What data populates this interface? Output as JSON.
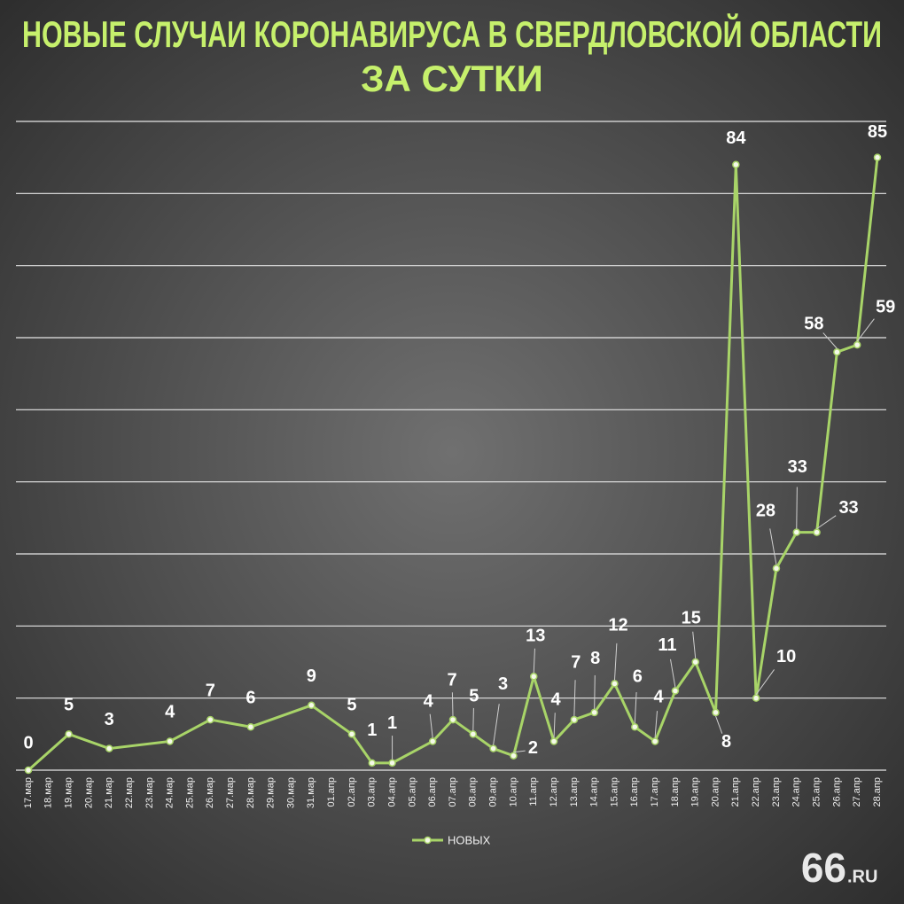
{
  "chart_data": {
    "type": "line",
    "title": [
      "НОВЫЕ СЛУЧАИ КОРОНАВИРУСА В СВЕРДЛОВСКОЙ ОБЛАСТИ",
      "ЗА СУТКИ"
    ],
    "categories": [
      "17.мар",
      "18.мар",
      "19.мар",
      "20.мар",
      "21.мар",
      "22.мар",
      "23.мар",
      "24.мар",
      "25.мар",
      "26.мар",
      "27.мар",
      "28.мар",
      "29.мар",
      "30.мар",
      "31.мар",
      "01.апр",
      "02.апр",
      "03.апр",
      "04.апр",
      "05.апр",
      "06.апр",
      "07.апр",
      "08.апр",
      "09.апр",
      "10.апр",
      "11.апр",
      "12.апр",
      "13.апр",
      "14.апр",
      "15.апр",
      "16.апр",
      "17.апр",
      "18.апр",
      "19.апр",
      "20.апр",
      "21.апр",
      "22.апр",
      "23.апр",
      "24.апр",
      "25.апр",
      "26.апр",
      "27.апр",
      "28.апр"
    ],
    "series": [
      {
        "name": "НОВЫХ",
        "color": "#a8d468",
        "x": [
          "17.мар",
          "19.мар",
          "21.мар",
          "24.мар",
          "26.мар",
          "28.мар",
          "31.мар",
          "02.апр",
          "03.апр",
          "04.апр",
          "06.апр",
          "07.апр",
          "08.апр",
          "09.апр",
          "10.апр",
          "11.апр",
          "12.апр",
          "13.апр",
          "14.апр",
          "15.апр",
          "16.апр",
          "17.апр",
          "18.апр",
          "19.апр",
          "20.апр",
          "21.апр",
          "22.апр",
          "23.апр",
          "24.апр",
          "25.апр",
          "26.апр",
          "27.апр",
          "28.апр"
        ],
        "values": [
          0,
          5,
          3,
          4,
          7,
          6,
          9,
          5,
          1,
          1,
          4,
          7,
          5,
          3,
          2,
          13,
          4,
          7,
          8,
          12,
          6,
          4,
          11,
          15,
          8,
          84,
          10,
          28,
          33,
          33,
          58,
          59,
          85
        ]
      }
    ],
    "ylim": [
      0,
      90
    ],
    "yticks": [
      0,
      10,
      20,
      30,
      40,
      50,
      60,
      70,
      80,
      90
    ],
    "grid": true,
    "legend": "bottom",
    "logo": [
      "66",
      ".RU"
    ]
  }
}
